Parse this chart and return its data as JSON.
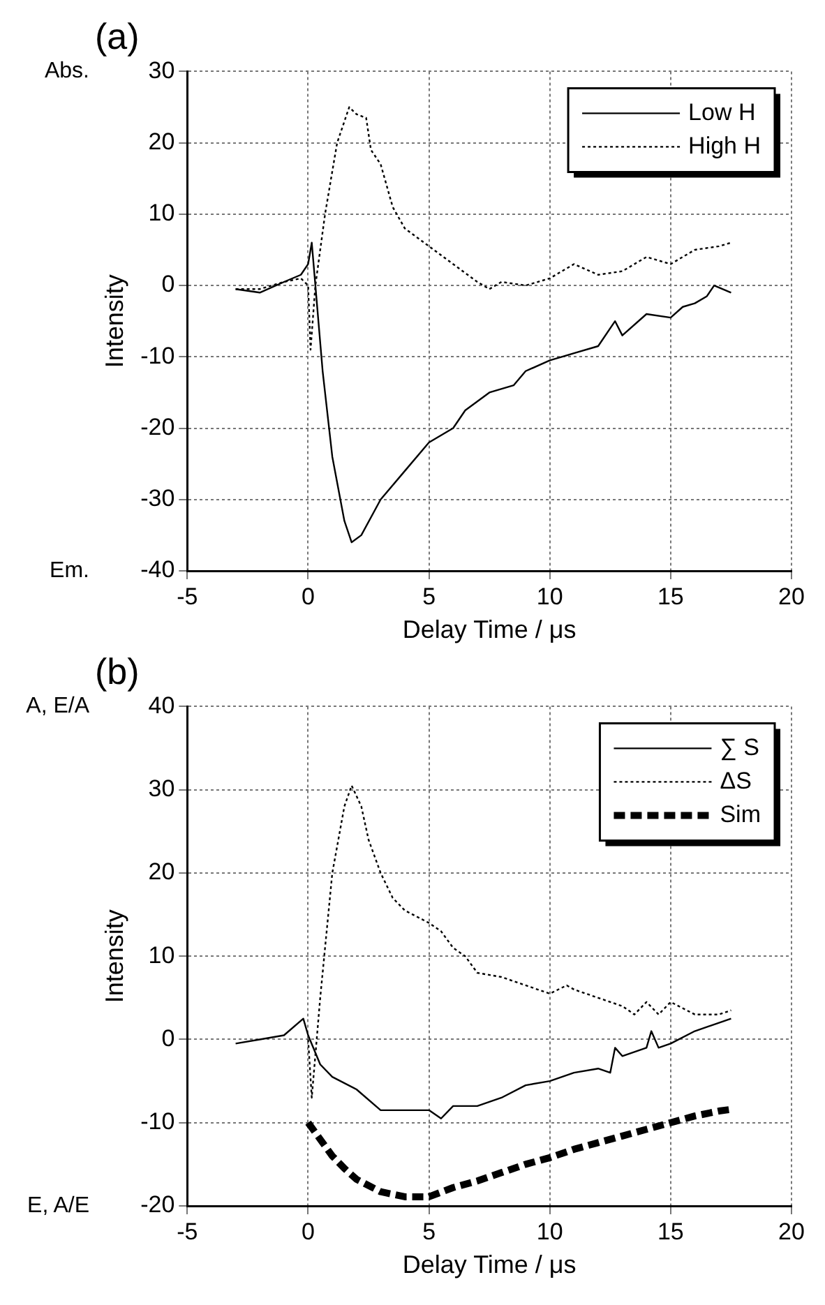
{
  "chart_data": [
    {
      "type": "line",
      "title": "(a)",
      "xlabel": "Delay Time / μs",
      "ylabel": "Intensity",
      "annotations": [
        "Abs.",
        "Em."
      ],
      "xlim": [
        -5,
        20
      ],
      "xticks": [
        -5,
        0,
        5,
        10,
        15,
        20
      ],
      "ylim": [
        -40,
        30
      ],
      "yticks": [
        -40,
        -30,
        -20,
        -10,
        0,
        10,
        20,
        30
      ],
      "grid": true,
      "legend": "top right",
      "marker": "none",
      "series": [
        {
          "name": "Low H",
          "color": "#000000",
          "line_style": "solid",
          "x": [
            -3,
            -2,
            -1,
            -0.3,
            0,
            0.15,
            0.3,
            0.6,
            1,
            1.5,
            1.8,
            2.2,
            3,
            4,
            5,
            6,
            6.5,
            7.5,
            8.5,
            9,
            10,
            11,
            12,
            12.7,
            13,
            14,
            15,
            15.5,
            16,
            16.5,
            16.8,
            17.5
          ],
          "values": [
            -0.5,
            -1,
            0.5,
            1.5,
            3,
            6,
            0,
            -12,
            -24,
            -33,
            -36,
            -35,
            -30,
            -26,
            -22,
            -20,
            -17.5,
            -15,
            -14,
            -12,
            -10.5,
            -9.5,
            -8.5,
            -5,
            -7,
            -4,
            -4.5,
            -3,
            -2.5,
            -1.5,
            0,
            -1
          ]
        },
        {
          "name": "High H",
          "color": "#000000",
          "line_style": "dotted",
          "x": [
            -3,
            -2,
            -1,
            -0.3,
            0,
            0.1,
            0.3,
            0.7,
            1.2,
            1.7,
            2,
            2.4,
            2.6,
            3,
            3.5,
            4,
            5,
            6,
            7,
            7.5,
            8,
            9,
            10,
            11,
            12,
            13,
            14,
            15,
            16,
            17,
            17.5
          ],
          "values": [
            -0.5,
            -0.5,
            0.5,
            1,
            0,
            -9,
            0,
            10,
            20,
            25,
            24,
            23.5,
            19,
            17,
            11,
            8,
            5.5,
            3,
            0.5,
            -0.5,
            0.5,
            0,
            1,
            3,
            1.5,
            2,
            4,
            3,
            5,
            5.5,
            6
          ]
        }
      ]
    },
    {
      "type": "line",
      "title": "(b)",
      "xlabel": "Delay Time / μs",
      "ylabel": "Intensity",
      "annotations": [
        "A, E/A",
        "E, A/E"
      ],
      "xlim": [
        -5,
        20
      ],
      "xticks": [
        -5,
        0,
        5,
        10,
        15,
        20
      ],
      "ylim": [
        -20,
        40
      ],
      "yticks": [
        -20,
        -10,
        0,
        10,
        20,
        30,
        40
      ],
      "grid": true,
      "legend": "top right",
      "marker": "none",
      "series": [
        {
          "name": "∑ S",
          "color": "#000000",
          "line_style": "solid",
          "x": [
            -3,
            -2,
            -1,
            -0.2,
            0,
            0.5,
            1,
            2,
            3,
            4,
            5,
            5.5,
            6,
            7,
            8,
            9,
            10,
            11,
            12,
            12.5,
            12.7,
            13,
            14,
            14.2,
            14.5,
            15,
            16,
            17,
            17.5
          ],
          "values": [
            -0.5,
            0,
            0.5,
            2.5,
            0.5,
            -3,
            -4.5,
            -6,
            -8.5,
            -8.5,
            -8.5,
            -9.5,
            -8,
            -8,
            -7,
            -5.5,
            -5,
            -4,
            -3.5,
            -4,
            -1,
            -2,
            -1,
            1,
            -1,
            -0.5,
            1,
            2,
            2.5
          ]
        },
        {
          "name": "ΔS",
          "color": "#000000",
          "line_style": "dotted",
          "x": [
            0,
            0.15,
            0.5,
            1,
            1.5,
            1.8,
            2.2,
            2.5,
            3,
            3.5,
            4,
            5,
            5.5,
            6,
            6.5,
            7,
            8,
            9,
            10,
            10.7,
            11,
            12,
            13,
            13.5,
            14,
            14.5,
            15,
            16,
            17,
            17.5
          ],
          "values": [
            0,
            -7,
            5,
            20,
            28,
            30.5,
            28,
            24,
            20,
            17,
            15.5,
            14,
            13,
            11,
            10,
            8,
            7.5,
            6.5,
            5.5,
            6.5,
            6,
            5,
            4,
            3,
            4.5,
            3,
            4.5,
            3,
            3,
            3.5
          ]
        },
        {
          "name": "Sim",
          "color": "#000000",
          "line_style": "dashed",
          "x": [
            0,
            0.5,
            1,
            1.5,
            2,
            3,
            4,
            5,
            6,
            7,
            8,
            9,
            10,
            11,
            12,
            13,
            14,
            15,
            16,
            17,
            17.5
          ],
          "values": [
            -10,
            -12,
            -14,
            -15.5,
            -16.8,
            -18.3,
            -18.9,
            -18.9,
            -17.8,
            -17,
            -16,
            -15,
            -14.2,
            -13.2,
            -12.4,
            -11.6,
            -10.8,
            -10,
            -9.2,
            -8.6,
            -8.4
          ]
        }
      ]
    }
  ]
}
